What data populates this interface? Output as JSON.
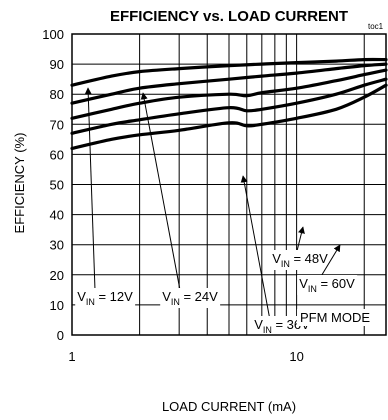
{
  "chart_data": {
    "type": "line",
    "title": "EFFICIENCY vs. LOAD CURRENT",
    "figure_id": "toc1",
    "xlabel": "LOAD CURRENT (mA)",
    "ylabel": "EFFICIENCY (%)",
    "x_scale": "log",
    "xlim": [
      1,
      25
    ],
    "ylim": [
      0,
      100
    ],
    "x_ticks": [
      {
        "value": 1,
        "label": "1"
      },
      {
        "value": 10,
        "label": "10"
      }
    ],
    "y_ticks": [
      0,
      10,
      20,
      30,
      40,
      50,
      60,
      70,
      80,
      90,
      100
    ],
    "grid": true,
    "annotation": "PFM MODE",
    "series": [
      {
        "name": "VIN = 12V",
        "label_main": "V",
        "label_sub": "IN",
        "label_rest": " = 12V",
        "x": [
          1,
          1.5,
          2,
          3,
          5,
          7,
          10,
          15,
          20,
          25
        ],
        "y": [
          83,
          86,
          87.5,
          88.5,
          89.5,
          90,
          90.5,
          91,
          91.5,
          91.5
        ]
      },
      {
        "name": "VIN = 24V",
        "label_main": "V",
        "label_sub": "IN",
        "label_rest": " = 24V",
        "x": [
          1,
          1.5,
          2,
          3,
          5,
          7,
          10,
          15,
          20,
          25
        ],
        "y": [
          77,
          80,
          82,
          83.5,
          85,
          86,
          87,
          88.5,
          89.5,
          90
        ]
      },
      {
        "name": "VIN = 36V",
        "label_main": "V",
        "label_sub": "IN",
        "label_rest": " = 36V",
        "x": [
          1,
          1.5,
          2,
          3,
          5,
          6,
          7,
          10,
          15,
          20,
          25
        ],
        "y": [
          72,
          75,
          77,
          79,
          80,
          79.5,
          80.5,
          82,
          84.5,
          86.5,
          88
        ]
      },
      {
        "name": "VIN = 48V",
        "label_main": "V",
        "label_sub": "IN",
        "label_rest": " = 48V",
        "x": [
          1,
          1.5,
          2,
          3,
          5,
          6,
          7,
          10,
          15,
          20,
          25
        ],
        "y": [
          67,
          70,
          71.5,
          73.5,
          75.5,
          74.5,
          75,
          77,
          80,
          83,
          85
        ]
      },
      {
        "name": "VIN = 60V",
        "label_main": "V",
        "label_sub": "IN",
        "label_rest": " = 60V",
        "x": [
          1,
          1.5,
          2,
          3,
          5,
          6,
          7,
          10,
          15,
          20,
          25
        ],
        "y": [
          62,
          65,
          66.5,
          68,
          70.5,
          69.5,
          70,
          72,
          75,
          79,
          83
        ]
      }
    ]
  }
}
